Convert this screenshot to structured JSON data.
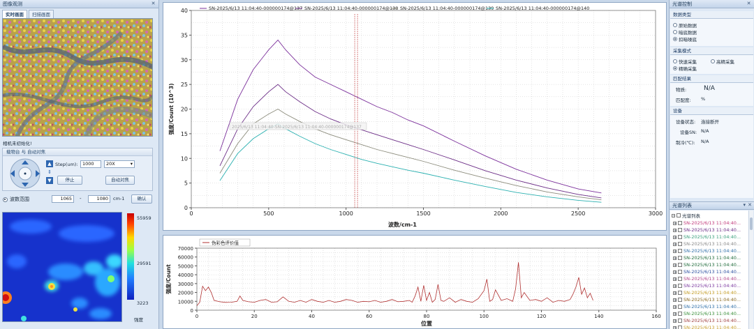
{
  "left": {
    "title": "图像观测",
    "tabs": [
      "实时画面",
      "扫描画面"
    ],
    "camera_status": "相机未初始化!",
    "stage": {
      "header": "载物台 与 自动对焦",
      "step_label": "Step(um):",
      "step_value": "1000",
      "objective": "20X",
      "stop": "停止",
      "autofocus": "自动对焦"
    },
    "range": {
      "label": "波数范围",
      "from": "1065",
      "dash": "-",
      "to": "1080",
      "unit": "cm-1",
      "ok": "确认"
    },
    "colorbar": {
      "max": "55959",
      "mid": "29591",
      "min": "3223",
      "label": "强度"
    }
  },
  "spectrum": {
    "y_title": "强度/Count (10^3)",
    "x_title": "波数/cm-1",
    "overlay": "2025/6/13 11:04:40-SN-2025/6/13 11:04:40-000000174@137"
  },
  "lower": {
    "y_title": "强度/Count",
    "x_title": "位置"
  },
  "right": {
    "title": "光谱控制",
    "data_type": {
      "header": "数据类型",
      "options": [
        "原始数据",
        "暗底数据",
        "扣暗噪底"
      ],
      "selected": 2
    },
    "mode": {
      "header": "采集模式",
      "fast": "快速采集",
      "high": "高精采集",
      "precise": "精确采集"
    },
    "match": {
      "header": "匹配结果",
      "substance_label": "物质:",
      "substance_value": "N/A",
      "score_label": "匹配度:",
      "score_value": "%"
    },
    "device": {
      "header": "设备",
      "status_label": "设备状态:",
      "status_value": "连接断开",
      "sn_label": "设备SN:",
      "sn_value": "N/A",
      "temp_label": "制冷(℃):",
      "temp_value": "N/A"
    },
    "list_title": "光谱列表",
    "tree_root": "光谱列表",
    "items": [
      {
        "label": "SN-2025/6/13 11:04:40...",
        "color": "#c23a7a"
      },
      {
        "label": "SN-2025/6/13 11:04:40...",
        "color": "#6b2c86"
      },
      {
        "label": "SN-2025/6/13 11:04:40...",
        "color": "#3aa07c"
      },
      {
        "label": "SN-2025/6/13 11:04:40...",
        "color": "#8a8a8a"
      },
      {
        "label": "SN-2025/6/13 11:04:40...",
        "color": "#2f6fa8"
      },
      {
        "label": "SN-2025/6/13 11:04:40...",
        "color": "#1f6b3b"
      },
      {
        "label": "SN-2025/6/13 11:04:40...",
        "color": "#1f6b3b"
      },
      {
        "label": "SN-2025/6/13 11:04:40...",
        "color": "#2b4fa0"
      },
      {
        "label": "SN-2025/6/13 11:04:40...",
        "color": "#b0458a"
      },
      {
        "label": "SN-2025/6/13 11:04:40...",
        "color": "#7c3aa0"
      },
      {
        "label": "SN-2025/6/13 11:04:40...",
        "color": "#c29a20"
      },
      {
        "label": "SN-2025/6/13 11:04:40...",
        "color": "#8a6a20"
      },
      {
        "label": "SN-2025/6/13 11:04:40...",
        "color": "#2f6fa8"
      },
      {
        "label": "SN-2025/6/13 11:04:40...",
        "color": "#3a8f3a"
      },
      {
        "label": "SN-2025/6/13 11:04:40...",
        "color": "#a04040"
      },
      {
        "label": "SN-2025/6/13 11:04:40...",
        "color": "#c8a030"
      },
      {
        "label": "SN-2025/6/13 11:04:40...",
        "color": "#a0a030"
      }
    ]
  },
  "chart_data": [
    {
      "type": "line",
      "xlim": [
        0,
        3000
      ],
      "ylim": [
        0,
        40
      ],
      "xticks": [
        0,
        500,
        1000,
        1500,
        2000,
        2500,
        3000
      ],
      "yticks": [
        0,
        5,
        10,
        15,
        20,
        25,
        30,
        35,
        40
      ],
      "cursor_x": 1065,
      "series": [
        {
          "name": "SN-2025/6/13 11:04:40-000000174@137",
          "color": "#7b2f9b",
          "x": [
            185,
            300,
            400,
            500,
            560,
            610,
            700,
            800,
            900,
            1000,
            1100,
            1200,
            1300,
            1400,
            1500,
            1700,
            1900,
            2100,
            2300,
            2500,
            2650
          ],
          "y": [
            11.5,
            22,
            28,
            32,
            34,
            32,
            29,
            26.5,
            25,
            23.5,
            22,
            20.5,
            19.3,
            17.8,
            16.6,
            13.5,
            10.5,
            7.8,
            5.6,
            3.8,
            3.0
          ]
        },
        {
          "name": "SN-2025/6/13 11:04:40-000000174@138",
          "color": "#6b2c86",
          "x": [
            185,
            300,
            400,
            500,
            560,
            610,
            700,
            800,
            900,
            1000,
            1100,
            1200,
            1300,
            1400,
            1500,
            1700,
            1900,
            2100,
            2300,
            2500,
            2650
          ],
          "y": [
            8.5,
            16,
            20.5,
            23.5,
            25,
            23.5,
            21.5,
            19.5,
            18,
            16.8,
            15.8,
            14.8,
            13.8,
            12.8,
            11.8,
            9.7,
            7.5,
            5.6,
            4.0,
            2.7,
            2.0
          ]
        },
        {
          "name": "SN-2025/6/13 11:04:40-000000174@139",
          "color": "#8c8c7c",
          "x": [
            185,
            300,
            400,
            500,
            560,
            610,
            700,
            800,
            900,
            1000,
            1100,
            1200,
            1300,
            1400,
            1500,
            1700,
            1900,
            2100,
            2300,
            2500,
            2650
          ],
          "y": [
            7,
            13,
            17,
            19,
            20,
            19,
            17.5,
            16,
            14.8,
            13.8,
            12.8,
            11.8,
            11,
            10.2,
            9.4,
            7.6,
            6.0,
            4.5,
            3.2,
            2.2,
            1.6
          ]
        },
        {
          "name": "SN-2025/6/13 11:04:40-000000174@140",
          "color": "#2ab0b0",
          "x": [
            185,
            300,
            400,
            500,
            560,
            610,
            700,
            800,
            900,
            1000,
            1100,
            1200,
            1300,
            1400,
            1500,
            1700,
            1900,
            2100,
            2300,
            2500,
            2650
          ],
          "y": [
            5.5,
            11,
            14,
            16,
            17,
            16,
            14.5,
            13,
            11.8,
            10.8,
            9.8,
            9,
            8.3,
            7.6,
            7,
            5.6,
            4.3,
            3.1,
            2.2,
            1.5,
            1.1
          ]
        }
      ]
    },
    {
      "type": "line",
      "xlim": [
        0,
        160
      ],
      "ylim": [
        0,
        70000
      ],
      "xticks": [
        0,
        20,
        40,
        60,
        80,
        100,
        120,
        140,
        160
      ],
      "yticks": [
        0,
        10000,
        20000,
        30000,
        40000,
        50000,
        60000,
        70000
      ],
      "series": [
        {
          "name": "伪彩色评价值",
          "color": "#b03030",
          "x": [
            0,
            1,
            2,
            3,
            4,
            5,
            6,
            8,
            10,
            12,
            14,
            15,
            16,
            18,
            20,
            22,
            24,
            26,
            28,
            30,
            32,
            34,
            36,
            38,
            40,
            42,
            44,
            46,
            48,
            50,
            52,
            54,
            56,
            58,
            60,
            62,
            64,
            66,
            68,
            70,
            72,
            74,
            75,
            76,
            77,
            78,
            79,
            80,
            81,
            82,
            83,
            84,
            85,
            86,
            88,
            90,
            92,
            94,
            96,
            98,
            100,
            101,
            102,
            103,
            104,
            106,
            108,
            110,
            111,
            112,
            113,
            114,
            116,
            118,
            120,
            122,
            124,
            126,
            128,
            130,
            131,
            132,
            133,
            134,
            135,
            136,
            137,
            138
          ],
          "y": [
            5000,
            9000,
            27000,
            22000,
            26000,
            20000,
            11000,
            9500,
            8800,
            9000,
            10000,
            16000,
            11000,
            9500,
            9000,
            11000,
            12000,
            9000,
            9500,
            15000,
            10000,
            9000,
            11000,
            9000,
            12000,
            10000,
            9000,
            11000,
            9000,
            10000,
            12000,
            11000,
            9000,
            10000,
            9500,
            11000,
            9000,
            10000,
            12000,
            9500,
            10000,
            11000,
            9000,
            16000,
            26000,
            10000,
            28000,
            11000,
            20000,
            9000,
            12000,
            29000,
            11000,
            10000,
            14000,
            9000,
            12000,
            10000,
            9000,
            13000,
            22000,
            35000,
            10000,
            12000,
            23000,
            11000,
            13000,
            10000,
            24000,
            54000,
            14000,
            20000,
            11000,
            12000,
            10000,
            14000,
            9000,
            11000,
            10000,
            12000,
            18000,
            26000,
            37000,
            18000,
            25000,
            14000,
            19000,
            11000
          ]
        }
      ]
    }
  ]
}
